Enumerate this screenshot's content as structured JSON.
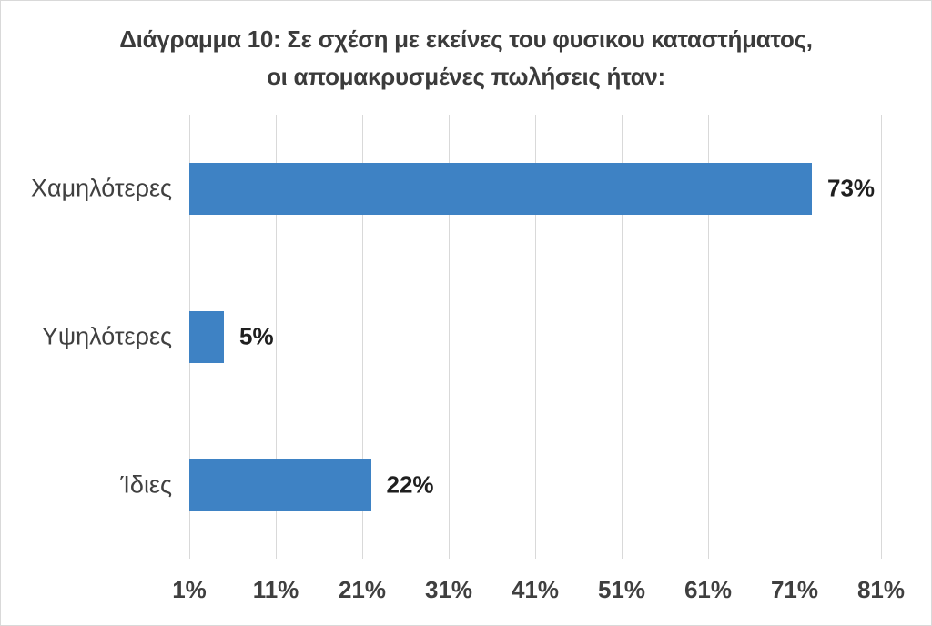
{
  "chart": {
    "title_line1": "Διάγραμμα 10: Σε σχέση με εκείνες του φυσικου καταστήματος,",
    "title_line2": "οι απομακρυσμένες πωλήσεις ήταν:"
  },
  "chart_data": {
    "type": "bar",
    "orientation": "horizontal",
    "title": "Διάγραμμα 10: Σε σχέση με εκείνες του φυσικου καταστήματος, οι απομακρυσμένες πωλήσεις ήταν:",
    "categories": [
      "Χαμηλότερες",
      "Υψηλότερες",
      "Ίδιες"
    ],
    "values": [
      73,
      5,
      22
    ],
    "data_labels": [
      "73%",
      "5%",
      "22%"
    ],
    "xlabel": "",
    "ylabel": "",
    "x_ticks": [
      "1%",
      "11%",
      "21%",
      "31%",
      "41%",
      "51%",
      "61%",
      "71%",
      "81%"
    ],
    "x_min": 1,
    "x_max": 81,
    "x_major_unit": 10,
    "grid": "vertical",
    "legend": "none",
    "colors": {
      "bar": "#3E82C4",
      "gridline": "#D9D9D9",
      "chart_border": "#D9D9D9",
      "background": "#FFFFFF",
      "title_text": "#3B3B3B",
      "category_text": "#404040",
      "tick_text": "#3F3F3F",
      "data_label_text": "#1F1F1F"
    }
  }
}
